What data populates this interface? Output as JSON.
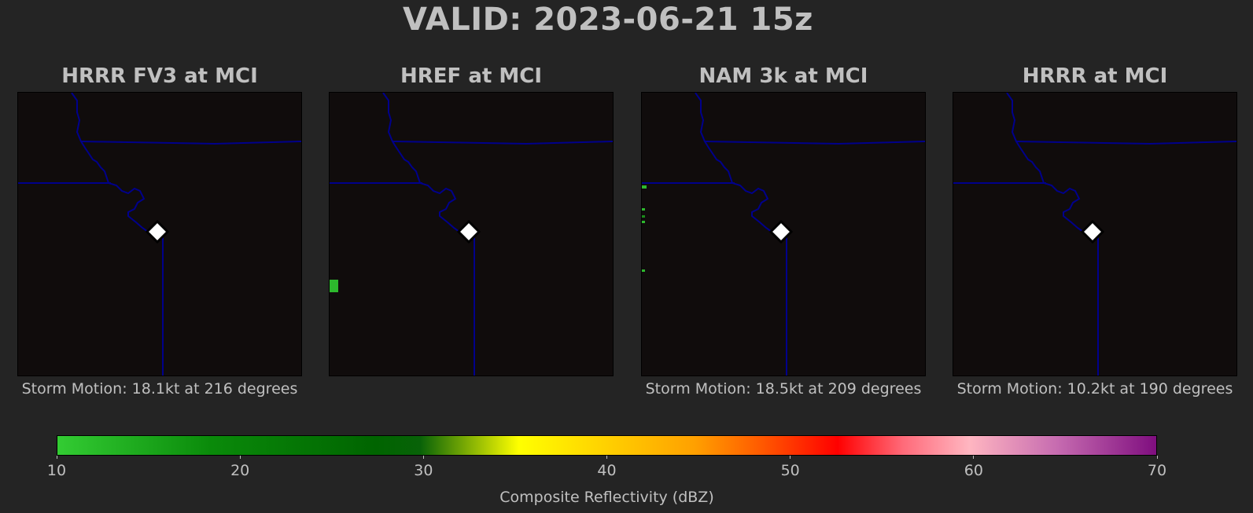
{
  "title": "VALID: 2023-06-21 15z",
  "panels": [
    {
      "title": "HRRR FV3 at MCI",
      "storm_motion": "Storm Motion: 18.1kt at 216 degrees"
    },
    {
      "title": "HREF at MCI",
      "storm_motion": ""
    },
    {
      "title": "NAM 3k at MCI",
      "storm_motion": "Storm Motion: 18.5kt at 209 degrees"
    },
    {
      "title": "HRRR at MCI",
      "storm_motion": "Storm Motion: 10.2kt at 190 degrees"
    }
  ],
  "colorbar": {
    "label": "Composite Reflectivity (dBZ)",
    "ticks": [
      "10",
      "20",
      "30",
      "40",
      "50",
      "60",
      "70"
    ],
    "range": [
      10,
      70
    ]
  },
  "colors": {
    "background": "#242424",
    "map_background": "#100c0c",
    "state_borders": "#00008b",
    "station_marker": "#ffffff",
    "echo_green": "#2db82d"
  },
  "station_marker_icon": "white-diamond-icon"
}
